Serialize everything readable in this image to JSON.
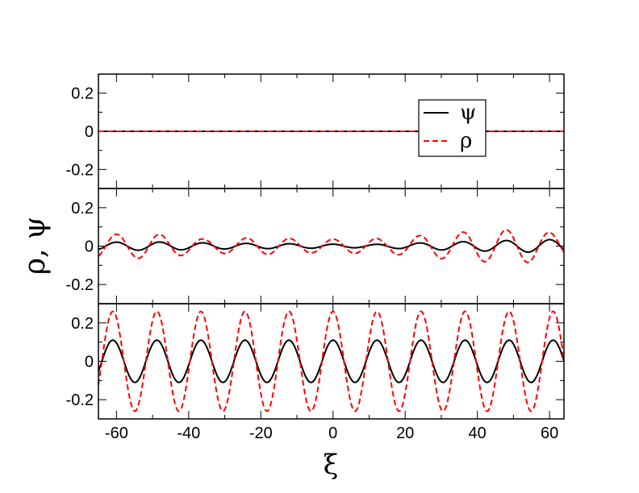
{
  "chart_data": {
    "type": "line",
    "ylabel": "ρ, ψ",
    "xlabel": "ξ",
    "xlim": [
      -65,
      64
    ],
    "ylim": [
      -0.3,
      0.3
    ],
    "x_ticks": [
      -60,
      -40,
      -20,
      0,
      20,
      40,
      60
    ],
    "y_ticks": [
      -0.2,
      0,
      0.2
    ],
    "legend": {
      "position": "top-right, first panel",
      "entries": [
        "ψ",
        "ρ"
      ]
    },
    "panels": [
      {
        "series": [
          {
            "name": "ψ",
            "color": "#000000",
            "style": "solid",
            "amplitude": 0.0,
            "period": 12.0,
            "phase": 0.0
          },
          {
            "name": "ρ",
            "color": "#ff0000",
            "style": "dashed",
            "amplitude": 0.0,
            "period": 12.0,
            "phase": 0.0
          }
        ]
      },
      {
        "series": [
          {
            "name": "ψ",
            "color": "#000000",
            "style": "solid",
            "amplitude_by_x": [
              [
                -65,
                0.02
              ],
              [
                -50,
                0.022
              ],
              [
                -30,
                0.015
              ],
              [
                -10,
                0.012
              ],
              [
                10,
                0.008
              ],
              [
                30,
                0.02
              ],
              [
                50,
                0.03
              ],
              [
                64,
                0.035
              ]
            ],
            "period": 12.0,
            "phase": 0.0
          },
          {
            "name": "ρ",
            "color": "#ff0000",
            "style": "dashed",
            "amplitude_by_x": [
              [
                -65,
                0.06
              ],
              [
                -50,
                0.065
              ],
              [
                -35,
                0.035
              ],
              [
                -20,
                0.045
              ],
              [
                -5,
                0.035
              ],
              [
                15,
                0.04
              ],
              [
                30,
                0.065
              ],
              [
                45,
                0.085
              ],
              [
                55,
                0.085
              ],
              [
                64,
                0.06
              ]
            ],
            "period": 12.0,
            "phase": 0.0
          }
        ]
      },
      {
        "series": [
          {
            "name": "ψ",
            "color": "#000000",
            "style": "solid",
            "amplitude": 0.11,
            "period": 12.2,
            "phase": 0.0
          },
          {
            "name": "ρ",
            "color": "#ff0000",
            "style": "dashed",
            "amplitude": 0.26,
            "period": 12.2,
            "phase": 0.0
          }
        ]
      }
    ]
  }
}
